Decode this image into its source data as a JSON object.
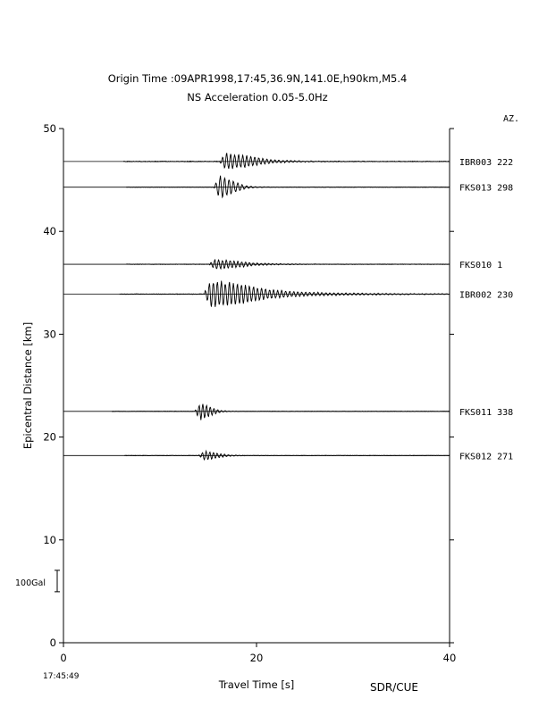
{
  "header": {
    "title": "Origin Time :09APR1998,17:45,36.9N,141.0E,h90km,M5.4",
    "subtitle": "NS Acceleration 0.05-5.0Hz"
  },
  "chart_data": {
    "type": "line",
    "title": "Origin Time :09APR1998,17:45,36.9N,141.0E,h90km,M5.4",
    "subtitle": "NS Acceleration 0.05-5.0Hz",
    "xlabel": "Travel Time [s]",
    "ylabel": "Epicentral Distance [km]",
    "xlim": [
      0,
      40
    ],
    "ylim": [
      0,
      50
    ],
    "x_ticks": [
      0,
      20,
      40
    ],
    "x_tick_labels": [
      "0",
      "20",
      "40"
    ],
    "y_ticks": [
      0,
      10,
      20,
      30,
      40,
      50
    ],
    "y_tick_labels": [
      "0",
      "10",
      "20",
      "30",
      "40",
      "50"
    ],
    "origin_time_label": "17:45:49",
    "right_axis_header": "AZ.",
    "credit": "SDR/CUE",
    "scale_bar": {
      "label": "100Gal",
      "center_y": 6.0
    },
    "grid": false,
    "series": [
      {
        "station": "IBR003",
        "azimuth": "222",
        "distance": 46.8,
        "start": 6.2,
        "end": 40.0,
        "arrival": 16.8,
        "peak": 0.9,
        "freq": 2.4,
        "decay": 0.32,
        "spread": 2.8,
        "noise": 0.08
      },
      {
        "station": "FKS013",
        "azimuth": "298",
        "distance": 44.3,
        "start": 6.5,
        "end": 40.0,
        "arrival": 16.2,
        "peak": 1.3,
        "freq": 2.2,
        "decay": 0.45,
        "spread": 1.6,
        "noise": 0.05
      },
      {
        "station": "FKS010",
        "azimuth": "1",
        "distance": 36.8,
        "start": 6.5,
        "end": 40.0,
        "arrival": 15.7,
        "peak": 0.55,
        "freq": 2.5,
        "decay": 0.3,
        "spread": 2.6,
        "noise": 0.06
      },
      {
        "station": "IBR002",
        "azimuth": "230",
        "distance": 33.9,
        "start": 5.8,
        "end": 40.0,
        "arrival": 15.2,
        "peak": 1.45,
        "freq": 2.4,
        "decay": 0.22,
        "spread": 3.8,
        "noise": 0.07
      },
      {
        "station": "FKS011",
        "azimuth": "338",
        "distance": 22.5,
        "start": 5.0,
        "end": 40.0,
        "arrival": 14.2,
        "peak": 0.95,
        "freq": 2.6,
        "decay": 0.55,
        "spread": 1.2,
        "noise": 0.05
      },
      {
        "station": "FKS012",
        "azimuth": "271",
        "distance": 18.2,
        "start": 6.3,
        "end": 40.0,
        "arrival": 14.6,
        "peak": 0.5,
        "freq": 2.6,
        "decay": 0.45,
        "spread": 1.6,
        "noise": 0.05
      }
    ]
  }
}
